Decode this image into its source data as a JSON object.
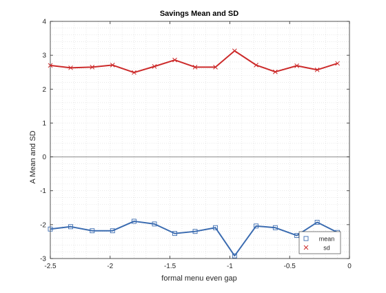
{
  "chart_data": {
    "type": "line",
    "title": "Savings Mean and SD",
    "xlabel": "formal menu even gap",
    "ylabel": "A Mean and SD",
    "xlim": [
      -2.5,
      0
    ],
    "ylim": [
      -3,
      4
    ],
    "xticks": [
      -2.5,
      -2,
      -1.5,
      -1,
      -0.5,
      0
    ],
    "xtick_labels": [
      "-2.5",
      "-2",
      "-1.5",
      "-1",
      "-0.5",
      "0"
    ],
    "yticks": [
      -3,
      -2,
      -1,
      0,
      1,
      2,
      3,
      4
    ],
    "ytick_labels": [
      "-3",
      "-2",
      "-1",
      "0",
      "1",
      "2",
      "3",
      "4"
    ],
    "grid": "minor dotted",
    "zero_line": true,
    "legend_position": "bottom-right",
    "x": [
      -2.5,
      -2.33,
      -2.15,
      -1.98,
      -1.8,
      -1.63,
      -1.46,
      -1.29,
      -1.12,
      -0.96,
      -0.78,
      -0.62,
      -0.44,
      -0.27,
      -0.1
    ],
    "series": [
      {
        "name": "mean",
        "color": "#3a6bb0",
        "marker": "square",
        "values": [
          -2.13,
          -2.06,
          -2.18,
          -2.18,
          -1.9,
          -1.98,
          -2.26,
          -2.2,
          -2.09,
          -2.92,
          -2.04,
          -2.09,
          -2.32,
          -1.93,
          -2.23
        ]
      },
      {
        "name": "sd",
        "color": "#cc2a2a",
        "marker": "x",
        "values": [
          2.7,
          2.63,
          2.65,
          2.71,
          2.49,
          2.67,
          2.86,
          2.65,
          2.65,
          3.13,
          2.71,
          2.51,
          2.69,
          2.57,
          2.76
        ]
      }
    ]
  }
}
